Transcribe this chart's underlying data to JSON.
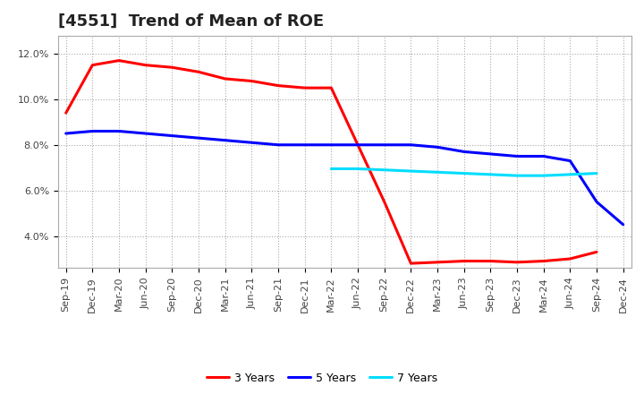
{
  "title": "[4551]  Trend of Mean of ROE",
  "x_labels": [
    "Sep-19",
    "Dec-19",
    "Mar-20",
    "Jun-20",
    "Sep-20",
    "Dec-20",
    "Mar-21",
    "Jun-21",
    "Sep-21",
    "Dec-21",
    "Mar-22",
    "Jun-22",
    "Sep-22",
    "Dec-22",
    "Mar-23",
    "Jun-23",
    "Sep-23",
    "Dec-23",
    "Mar-24",
    "Jun-24",
    "Sep-24",
    "Dec-24"
  ],
  "series": {
    "3 Years": {
      "color": "#ff0000",
      "values": [
        9.4,
        11.5,
        11.7,
        11.5,
        11.4,
        11.2,
        10.9,
        10.8,
        10.6,
        10.5,
        10.5,
        8.0,
        5.5,
        2.8,
        2.85,
        2.9,
        2.9,
        2.85,
        2.9,
        3.0,
        3.3,
        null
      ]
    },
    "5 Years": {
      "color": "#0000ff",
      "values": [
        8.5,
        8.6,
        8.6,
        8.5,
        8.4,
        8.3,
        8.2,
        8.1,
        8.0,
        8.0,
        8.0,
        8.0,
        8.0,
        8.0,
        7.9,
        7.7,
        7.6,
        7.5,
        7.5,
        7.3,
        5.5,
        4.5
      ]
    },
    "7 Years": {
      "color": "#00ddff",
      "values": [
        null,
        null,
        null,
        null,
        null,
        null,
        null,
        null,
        null,
        null,
        6.95,
        6.95,
        6.9,
        6.85,
        6.8,
        6.75,
        6.7,
        6.65,
        6.65,
        6.7,
        6.75,
        null
      ]
    },
    "10 Years": {
      "color": "#006600",
      "values": [
        null,
        null,
        null,
        null,
        null,
        null,
        null,
        null,
        null,
        null,
        null,
        null,
        null,
        null,
        null,
        null,
        null,
        null,
        null,
        null,
        null,
        null
      ]
    }
  },
  "ylim": [
    2.6,
    12.8
  ],
  "yticks": [
    4.0,
    6.0,
    8.0,
    10.0,
    12.0
  ],
  "ytick_labels": [
    "4.0%",
    "6.0%",
    "8.0%",
    "10.0%",
    "12.0%"
  ],
  "background_color": "#ffffff",
  "grid_color": "#aaaaaa",
  "title_fontsize": 13,
  "legend_fontsize": 9,
  "tick_fontsize": 8,
  "linewidth": 2.2
}
